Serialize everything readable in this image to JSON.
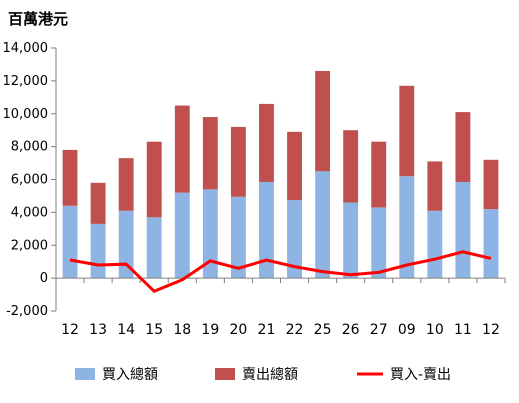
{
  "chart_data": {
    "type": "bar",
    "stacked": true,
    "title": "",
    "unit_label": "百萬港元",
    "categories": [
      "12",
      "13",
      "14",
      "15",
      "18",
      "19",
      "20",
      "21",
      "22",
      "25",
      "26",
      "27",
      "09",
      "10",
      "11",
      "12"
    ],
    "series": [
      {
        "name": "買入總額",
        "kind": "bar",
        "color": "#8eb4e3",
        "values": [
          4400,
          3300,
          4100,
          3700,
          5200,
          5400,
          4950,
          5850,
          4750,
          6500,
          4600,
          4300,
          6200,
          4100,
          5850,
          4200
        ]
      },
      {
        "name": "賣出總額",
        "kind": "bar",
        "color": "#c0504d",
        "values": [
          3400,
          2500,
          3200,
          4600,
          5300,
          4400,
          4250,
          4750,
          4150,
          6100,
          4400,
          4000,
          5500,
          3000,
          4250,
          3000
        ]
      },
      {
        "name": "買入-賣出",
        "kind": "line",
        "color": "#ff0000",
        "values": [
          1100,
          800,
          850,
          -800,
          -100,
          1050,
          600,
          1100,
          700,
          400,
          200,
          350,
          800,
          1150,
          1600,
          1200
        ]
      }
    ],
    "y_ticks": [
      "-2,000",
      "0",
      "2,000",
      "4,000",
      "6,000",
      "8,000",
      "10,000",
      "12,000",
      "14,000"
    ],
    "ylim": [
      -2000,
      14000
    ],
    "y_tick_step": 2000,
    "grid": false,
    "legend_position": "bottom"
  }
}
